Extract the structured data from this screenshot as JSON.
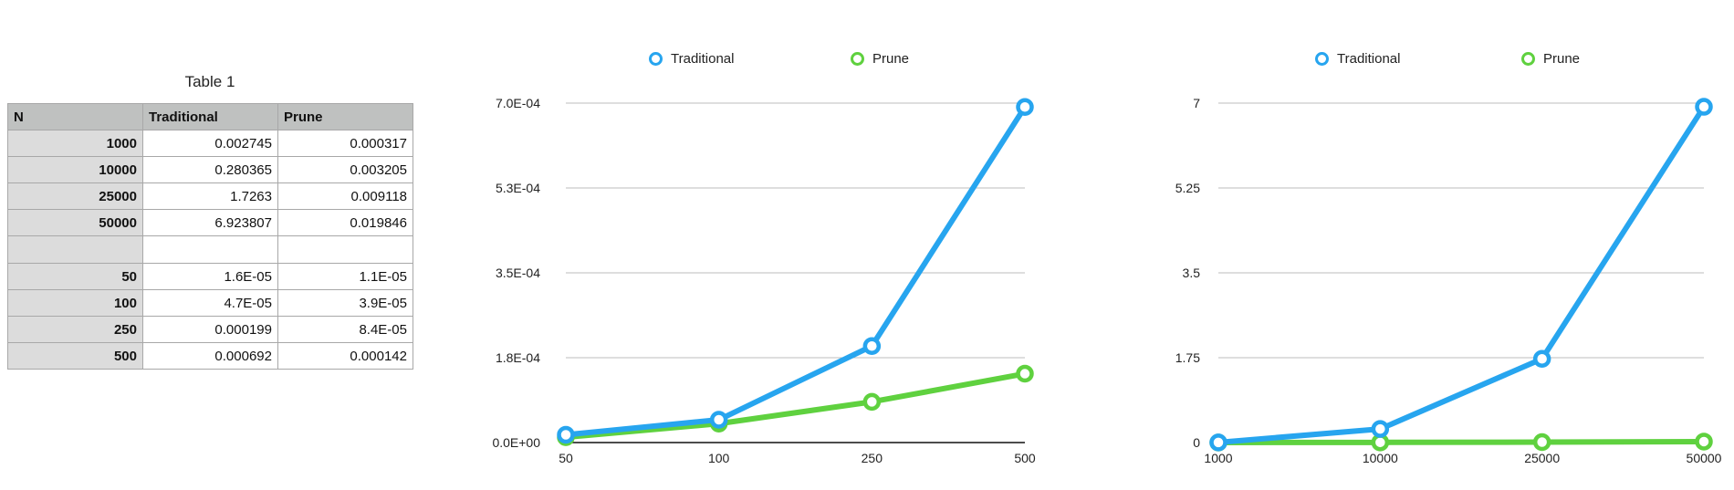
{
  "table": {
    "title": "Table 1",
    "headers": [
      "N",
      "Traditional",
      "Prune"
    ],
    "rows": [
      [
        "1000",
        "0.002745",
        "0.000317"
      ],
      [
        "10000",
        "0.280365",
        "0.003205"
      ],
      [
        "25000",
        "1.7263",
        "0.009118"
      ],
      [
        "50000",
        "6.923807",
        "0.019846"
      ],
      [
        "",
        "",
        ""
      ],
      [
        "50",
        "1.6E-05",
        "1.1E-05"
      ],
      [
        "100",
        "4.7E-05",
        "3.9E-05"
      ],
      [
        "250",
        "0.000199",
        "8.4E-05"
      ],
      [
        "500",
        "0.000692",
        "0.000142"
      ]
    ]
  },
  "colors": {
    "traditional": "#27a5ef",
    "prune": "#5fd13f",
    "grid": "#bdbdbd",
    "axis": "#111111"
  },
  "chart_data": [
    {
      "type": "line",
      "categories": [
        "50",
        "100",
        "250",
        "500"
      ],
      "series": [
        {
          "name": "Traditional",
          "values": [
            1.6e-05,
            4.7e-05,
            0.000199,
            0.000692
          ]
        },
        {
          "name": "Prune",
          "values": [
            1.1e-05,
            3.9e-05,
            8.4e-05,
            0.000142
          ]
        }
      ],
      "ylim": [
        0,
        0.0007
      ],
      "yticks": [
        0,
        0.000175,
        0.00035,
        0.000525,
        0.0007
      ],
      "ytick_labels": [
        "0.0E+00",
        "1.8E-04",
        "3.5E-04",
        "5.3E-04",
        "7.0E-04"
      ],
      "legend": [
        "Traditional",
        "Prune"
      ],
      "legend_position": "top",
      "grid": true,
      "title": "",
      "xlabel": "",
      "ylabel": ""
    },
    {
      "type": "line",
      "categories": [
        "1000",
        "10000",
        "25000",
        "50000"
      ],
      "series": [
        {
          "name": "Traditional",
          "values": [
            0.002745,
            0.280365,
            1.7263,
            6.923807
          ]
        },
        {
          "name": "Prune",
          "values": [
            0.000317,
            0.003205,
            0.009118,
            0.019846
          ]
        }
      ],
      "ylim": [
        0,
        7
      ],
      "yticks": [
        0,
        1.75,
        3.5,
        5.25,
        7
      ],
      "ytick_labels": [
        "0",
        "1.75",
        "3.5",
        "5.25",
        "7"
      ],
      "legend": [
        "Traditional",
        "Prune"
      ],
      "legend_position": "top",
      "grid": true,
      "title": "",
      "xlabel": "",
      "ylabel": ""
    }
  ]
}
